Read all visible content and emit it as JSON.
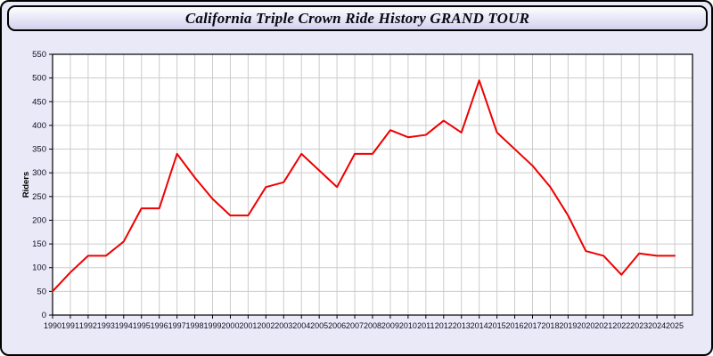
{
  "header": {
    "title": "California Triple Crown Ride History GRAND TOUR"
  },
  "chart_data": {
    "type": "line",
    "title": "California Triple Crown Ride History GRAND TOUR",
    "xlabel": "",
    "ylabel": "Riders",
    "categories": [
      "1990",
      "1991",
      "1992",
      "1993",
      "1994",
      "1995",
      "1996",
      "1997",
      "1998",
      "1999",
      "2000",
      "2001",
      "2002",
      "2003",
      "2004",
      "2005",
      "2006",
      "2007",
      "2008",
      "2009",
      "2010",
      "2011",
      "2012",
      "2013",
      "2014",
      "2015",
      "2016",
      "2017",
      "2018",
      "2019",
      "2020",
      "2021",
      "2022",
      "2023",
      "2024",
      "2025"
    ],
    "series": [
      {
        "name": "Riders",
        "values": [
          50,
          90,
          125,
          125,
          155,
          225,
          225,
          340,
          290,
          245,
          210,
          210,
          270,
          280,
          340,
          305,
          270,
          340,
          340,
          390,
          375,
          380,
          410,
          385,
          495,
          385,
          350,
          315,
          270,
          210,
          135,
          125,
          85,
          130,
          125,
          125
        ]
      }
    ],
    "ylim": [
      0,
      550
    ],
    "yticks": [
      0,
      50,
      100,
      150,
      200,
      250,
      300,
      350,
      400,
      450,
      500,
      550
    ],
    "grid": true,
    "legend": false,
    "colors": {
      "line": "#ee0000",
      "plot_background": "#ffffff",
      "page_background": "#e9e9f8",
      "grid": "#cccccc",
      "axis": "#000000",
      "tick_label": "#101020"
    }
  }
}
